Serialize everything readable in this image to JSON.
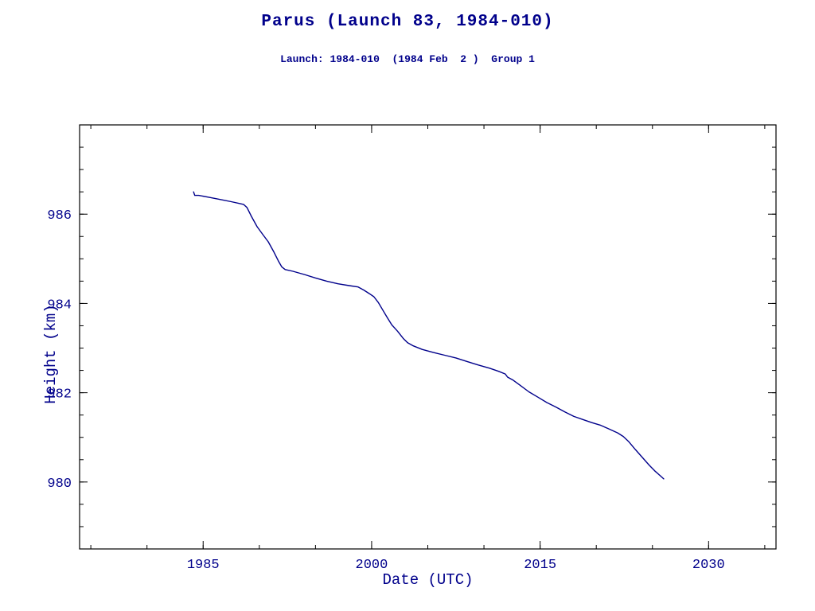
{
  "page": {
    "title": "Parus (Launch 83, 1984-010)",
    "subtitle": "Launch: 1984-010  (1984 Feb  2 )  Group 1"
  },
  "colors": {
    "accent": "#00008b",
    "frame": "#000000",
    "background": "#ffffff"
  },
  "chart_data": {
    "type": "line",
    "title": "Parus (Launch 83, 1984-010)",
    "subtitle": "Launch: 1984-010  (1984 Feb  2 )  Group 1",
    "xlabel": "Date (UTC)",
    "ylabel": "Height (km)",
    "xlim": [
      1974,
      2036
    ],
    "ylim": [
      978.5,
      988.0
    ],
    "x_ticks": [
      1985,
      2000,
      2015,
      2030
    ],
    "y_ticks": [
      980,
      982,
      984,
      986
    ],
    "x_minor_step": 5,
    "y_minor_step": 0.5,
    "grid": false,
    "legend": null,
    "line_color": "#00008b",
    "frame_color": "#000000",
    "series": [
      {
        "name": "height_km",
        "points": [
          [
            1984.15,
            986.5
          ],
          [
            1984.25,
            986.42
          ],
          [
            1984.6,
            986.42
          ],
          [
            1985.5,
            986.38
          ],
          [
            1986.5,
            986.33
          ],
          [
            1987.5,
            986.28
          ],
          [
            1988.6,
            986.22
          ],
          [
            1988.9,
            986.15
          ],
          [
            1989.3,
            985.95
          ],
          [
            1989.8,
            985.72
          ],
          [
            1990.3,
            985.55
          ],
          [
            1990.8,
            985.38
          ],
          [
            1991.3,
            985.15
          ],
          [
            1991.7,
            984.95
          ],
          [
            1992.0,
            984.82
          ],
          [
            1992.3,
            984.76
          ],
          [
            1993.0,
            984.72
          ],
          [
            1994.0,
            984.65
          ],
          [
            1995.0,
            984.57
          ],
          [
            1996.0,
            984.5
          ],
          [
            1997.0,
            984.44
          ],
          [
            1998.0,
            984.4
          ],
          [
            1998.8,
            984.37
          ],
          [
            1999.3,
            984.3
          ],
          [
            1999.8,
            984.22
          ],
          [
            2000.2,
            984.15
          ],
          [
            2000.6,
            984.02
          ],
          [
            2001.0,
            983.85
          ],
          [
            2001.4,
            983.68
          ],
          [
            2001.8,
            983.52
          ],
          [
            2002.3,
            983.38
          ],
          [
            2002.8,
            983.22
          ],
          [
            2003.2,
            983.12
          ],
          [
            2003.7,
            983.05
          ],
          [
            2004.5,
            982.97
          ],
          [
            2005.5,
            982.9
          ],
          [
            2006.5,
            982.84
          ],
          [
            2007.5,
            982.78
          ],
          [
            2008.5,
            982.7
          ],
          [
            2009.5,
            982.62
          ],
          [
            2010.5,
            982.55
          ],
          [
            2011.3,
            982.48
          ],
          [
            2011.9,
            982.42
          ],
          [
            2012.1,
            982.35
          ],
          [
            2012.6,
            982.28
          ],
          [
            2013.2,
            982.17
          ],
          [
            2014.0,
            982.02
          ],
          [
            2014.8,
            981.9
          ],
          [
            2015.6,
            981.78
          ],
          [
            2016.4,
            981.68
          ],
          [
            2017.2,
            981.57
          ],
          [
            2018.0,
            981.47
          ],
          [
            2018.8,
            981.4
          ],
          [
            2019.6,
            981.33
          ],
          [
            2020.4,
            981.27
          ],
          [
            2021.2,
            981.18
          ],
          [
            2021.9,
            981.1
          ],
          [
            2022.4,
            981.02
          ],
          [
            2022.9,
            980.9
          ],
          [
            2023.5,
            980.72
          ],
          [
            2024.1,
            980.55
          ],
          [
            2024.7,
            980.38
          ],
          [
            2025.2,
            980.25
          ],
          [
            2025.7,
            980.14
          ],
          [
            2026.0,
            980.07
          ]
        ]
      }
    ]
  }
}
